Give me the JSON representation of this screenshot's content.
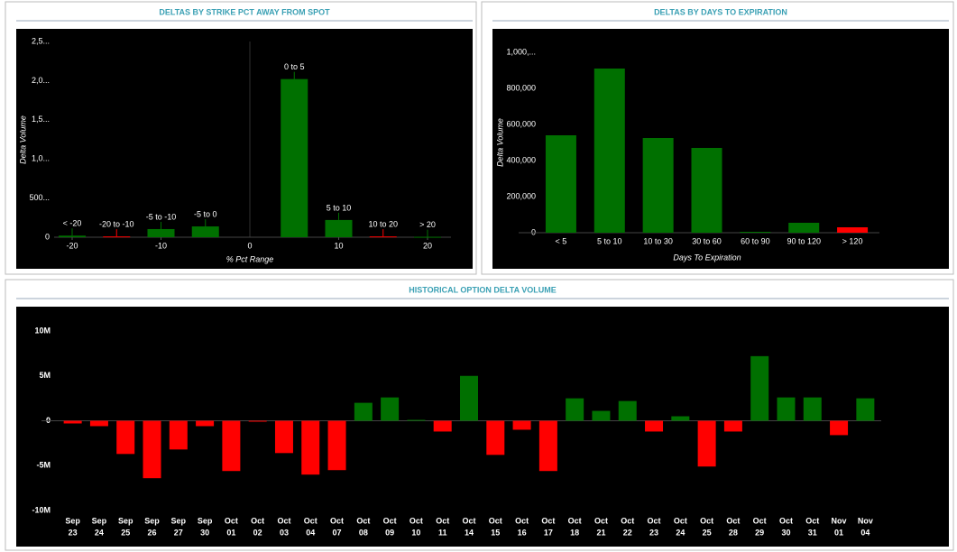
{
  "chart_data": [
    {
      "type": "bar",
      "title": "DELTAS BY STRIKE PCT AWAY FROM SPOT",
      "y_label": "Delta Volume",
      "x_label": "% Pct Range",
      "x": [
        -20,
        -15,
        -10,
        -5,
        5,
        10,
        15,
        20
      ],
      "labels": [
        "< -20",
        "-20 to -10",
        "-5 to -10",
        "-5 to 0",
        "0 to 5",
        "5 to 10",
        "10 to 20",
        "> 20"
      ],
      "values": [
        20000,
        10000,
        104000,
        138000,
        2020000,
        220000,
        10000,
        5000
      ],
      "colors": [
        "#007000",
        "#ff0000",
        "#007000",
        "#007000",
        "#007000",
        "#007000",
        "#ff0000",
        "#007000"
      ],
      "xlim": [
        -20,
        20
      ],
      "xticks": [
        -20,
        -10,
        0,
        10,
        20
      ],
      "ylim": [
        0,
        2500000
      ],
      "yticks": [
        0,
        {
          "value": 500000,
          "label": "500..."
        },
        {
          "value": 1000000,
          "label": "1,0..."
        },
        {
          "value": 1500000,
          "label": "1,5..."
        },
        {
          "value": 2000000,
          "label": "2,0..."
        },
        {
          "value": 2500000,
          "label": "2,5..."
        }
      ]
    },
    {
      "type": "bar",
      "title": "DELTAS BY DAYS TO EXPIRATION",
      "y_label": "Delta Volume",
      "x_label": "Days To Expiration",
      "categories": [
        "< 5",
        "5 to 10",
        "10 to 30",
        "30 to 60",
        "60 to 90",
        "90 to 120",
        "> 120"
      ],
      "values": [
        540000,
        910000,
        525000,
        470000,
        5000,
        55000,
        30000
      ],
      "colors": [
        "#007000",
        "#007000",
        "#007000",
        "#007000",
        "#007000",
        "#007000",
        "#ff0000"
      ],
      "ylim": [
        0,
        1000000
      ],
      "yticks": [
        0,
        {
          "value": 200000,
          "label": "200,000"
        },
        {
          "value": 400000,
          "label": "400,000"
        },
        {
          "value": 600000,
          "label": "600,000"
        },
        {
          "value": 800000,
          "label": "800,000"
        },
        {
          "value": 1000000,
          "label": "1,000,..."
        }
      ]
    },
    {
      "type": "bar",
      "title": "HISTORICAL OPTION DELTA VOLUME",
      "categories": [
        [
          "Sep",
          "23"
        ],
        [
          "Sep",
          "24"
        ],
        [
          "Sep",
          "25"
        ],
        [
          "Sep",
          "26"
        ],
        [
          "Sep",
          "27"
        ],
        [
          "Sep",
          "30"
        ],
        [
          "Oct",
          "01"
        ],
        [
          "Oct",
          "02"
        ],
        [
          "Oct",
          "03"
        ],
        [
          "Oct",
          "04"
        ],
        [
          "Oct",
          "07"
        ],
        [
          "Oct",
          "08"
        ],
        [
          "Oct",
          "09"
        ],
        [
          "Oct",
          "10"
        ],
        [
          "Oct",
          "11"
        ],
        [
          "Oct",
          "14"
        ],
        [
          "Oct",
          "15"
        ],
        [
          "Oct",
          "16"
        ],
        [
          "Oct",
          "17"
        ],
        [
          "Oct",
          "18"
        ],
        [
          "Oct",
          "21"
        ],
        [
          "Oct",
          "22"
        ],
        [
          "Oct",
          "23"
        ],
        [
          "Oct",
          "24"
        ],
        [
          "Oct",
          "25"
        ],
        [
          "Oct",
          "28"
        ],
        [
          "Oct",
          "29"
        ],
        [
          "Oct",
          "30"
        ],
        [
          "Oct",
          "31"
        ],
        [
          "Nov",
          "01"
        ],
        [
          "Nov",
          "04"
        ]
      ],
      "values": [
        -300000,
        -600000,
        -3700000,
        -6400000,
        -3200000,
        -600000,
        -5600000,
        -100000,
        -3600000,
        -6000000,
        -5500000,
        2000000,
        2600000,
        100000,
        -1200000,
        5000000,
        -3800000,
        -1000000,
        -5600000,
        2500000,
        1100000,
        2200000,
        -1200000,
        500000,
        -5100000,
        -1200000,
        7200000,
        2600000,
        2600000,
        -1600000,
        2500000
      ],
      "positive_color": "#007000",
      "negative_color": "#ff0000",
      "ylim": [
        -10000000,
        10000000
      ],
      "yticks": [
        {
          "value": -10000000,
          "label": "-10M"
        },
        {
          "value": -5000000,
          "label": "-5M"
        },
        0,
        {
          "value": 5000000,
          "label": "5M"
        },
        {
          "value": 10000000,
          "label": "10M"
        }
      ]
    }
  ]
}
